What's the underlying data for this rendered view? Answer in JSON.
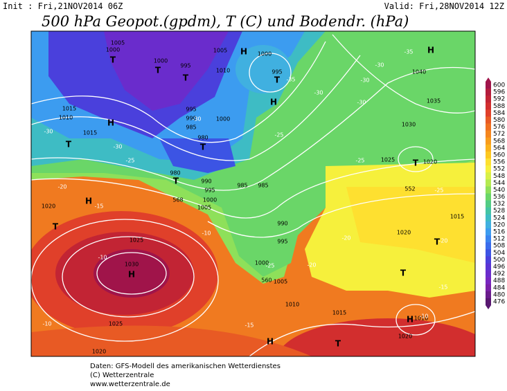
{
  "header": {
    "init": "Init : Fri,21NOV2014 06Z",
    "valid": "Valid: Fri,28NOV2014 12Z",
    "title": "500 hPa Geopot.(gpdm), T (C) und Bodendr. (hPa)"
  },
  "colorbar": {
    "levels": [
      600,
      596,
      592,
      588,
      584,
      580,
      576,
      572,
      568,
      564,
      560,
      556,
      552,
      548,
      544,
      540,
      536,
      532,
      528,
      524,
      520,
      516,
      512,
      508,
      504,
      500,
      496,
      492,
      488,
      484,
      480,
      476
    ],
    "colors": [
      "#a0144a",
      "#b31c3c",
      "#c22434",
      "#d22e2e",
      "#e0402a",
      "#e85a24",
      "#f07020",
      "#f5861e",
      "#f89c1c",
      "#fbb21c",
      "#fdc820",
      "#fee030",
      "#f6f03c",
      "#d8f048",
      "#b4ea50",
      "#8ee05a",
      "#6ad668",
      "#52cc84",
      "#44c4a4",
      "#3ebcc4",
      "#40b0e0",
      "#3c9cf0",
      "#3a84f0",
      "#3a6cec",
      "#3c54e4",
      "#4a40dc",
      "#5a34d4",
      "#6a2ccc",
      "#7826c0",
      "#7a20a8",
      "#6a1c8c",
      "#581870"
    ]
  },
  "pressure_labels": [
    "1005",
    "1000",
    "1000",
    "995",
    "1005",
    "1010",
    "1000",
    "995",
    "1015",
    "1010",
    "1015",
    "995",
    "990",
    "985",
    "980",
    "1000",
    "980",
    "990",
    "995",
    "1000",
    "985",
    "985",
    "1005",
    "990",
    "995",
    "1000",
    "1005",
    "1010",
    "1015",
    "1025",
    "1030",
    "1025",
    "1020",
    "1020",
    "1020",
    "1040",
    "1035",
    "1030",
    "1025",
    "1020",
    "1020",
    "1015",
    "1010"
  ],
  "geopotential_labels": [
    "552",
    "560",
    "568"
  ],
  "centers": [
    "H",
    "T",
    "T",
    "T",
    "T",
    "H",
    "H",
    "T",
    "T",
    "H",
    "T",
    "H",
    "H",
    "T",
    "T",
    "T",
    "H",
    "H",
    "T",
    "T"
  ],
  "temperature_labels": [
    "-30",
    "-35",
    "-30",
    "-30",
    "-30",
    "-35",
    "-30",
    "-25",
    "-25",
    "-25",
    "-20",
    "-25",
    "-30",
    "-20",
    "-20",
    "-15",
    "-15",
    "-10",
    "-10",
    "-10",
    "-10",
    "-15",
    "-25",
    "-20",
    "-30"
  ],
  "footer": [
    "Daten: GFS-Modell des amerikanischen Wetterdienstes",
    "(C) Wetterzentrale",
    "www.wetterzentrale.de"
  ]
}
